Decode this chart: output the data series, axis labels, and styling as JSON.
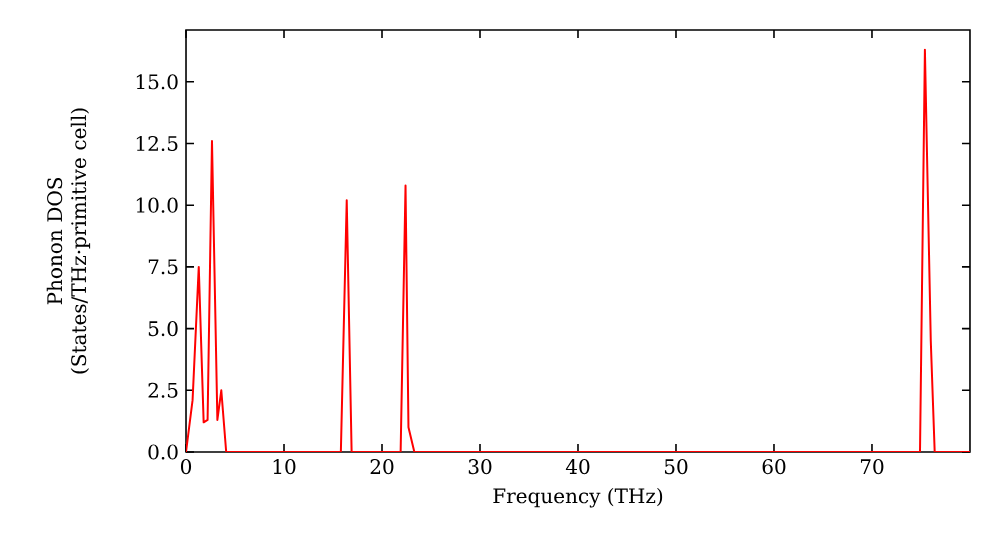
{
  "chart_data": {
    "type": "line",
    "xlabel": "Frequency (THz)",
    "ylabel": "Phonon DOS (States/THz·primitive cell)",
    "x": [
      0,
      0.67,
      1.3,
      1.8,
      2.2,
      2.65,
      3.2,
      3.6,
      4.1,
      15.8,
      16.4,
      16.9,
      21.9,
      22.4,
      22.7,
      23.3,
      74.9,
      75.4,
      76.0,
      76.4,
      80
    ],
    "values": [
      0,
      2.1,
      7.5,
      1.2,
      1.3,
      12.6,
      1.3,
      2.5,
      0,
      0,
      10.2,
      0,
      0,
      10.8,
      1.0,
      0,
      0,
      16.3,
      4.5,
      0,
      0
    ],
    "color": "#ff0000",
    "line_style": "solid",
    "marker": "none",
    "grid": false,
    "xlim": [
      0,
      80
    ],
    "ylim": [
      0,
      17.1
    ],
    "xticks": [
      0,
      10,
      20,
      30,
      40,
      50,
      60,
      70
    ],
    "yticks": [
      {
        "value": 0,
        "label": "0.0"
      },
      {
        "value": 2.5,
        "label": "2.5"
      },
      {
        "value": 5,
        "label": "5.0"
      },
      {
        "value": 7.5,
        "label": "7.5"
      },
      {
        "value": 10,
        "label": "10.0"
      },
      {
        "value": 12.5,
        "label": "12.5"
      },
      {
        "value": 15,
        "label": "15.0"
      }
    ]
  }
}
